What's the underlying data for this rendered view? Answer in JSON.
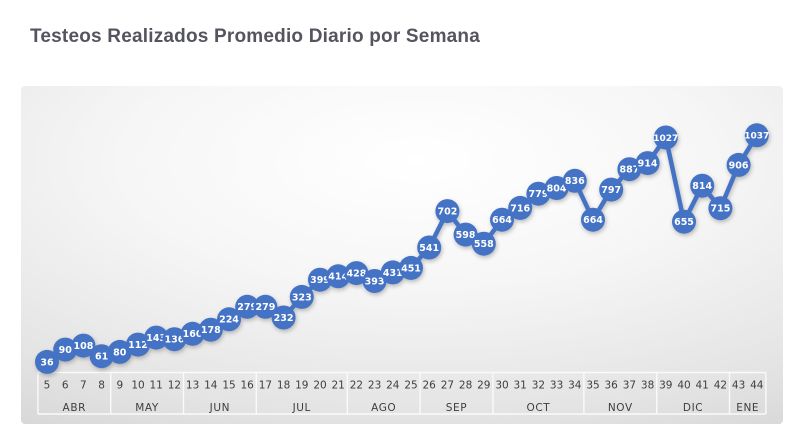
{
  "page": {
    "title": "Testeos Realizados Promedio Diario por Semana"
  },
  "colors": {
    "accent_blue": "#4472C4",
    "marker_label": "#FFFFFF",
    "title_text": "#54555E",
    "axis_text": "#3E3E3E",
    "axis_line": "#FAFAFA"
  },
  "chart_data": {
    "type": "line",
    "title": "Testeos Realizados Promedio Diario por Semana",
    "x": [
      5,
      6,
      7,
      8,
      9,
      10,
      11,
      12,
      13,
      14,
      15,
      16,
      17,
      18,
      19,
      20,
      21,
      22,
      23,
      24,
      25,
      26,
      27,
      28,
      29,
      30,
      31,
      32,
      33,
      34,
      35,
      36,
      37,
      38,
      39,
      40,
      41,
      42,
      43,
      44
    ],
    "values": [
      36,
      90,
      108,
      61,
      80,
      112,
      143,
      136,
      160,
      178,
      224,
      279,
      279,
      232,
      323,
      399,
      414,
      428,
      393,
      431,
      451,
      541,
      702,
      598,
      558,
      664,
      716,
      779,
      804,
      836,
      664,
      797,
      887,
      914,
      1027,
      655,
      814,
      715,
      906,
      1037
    ],
    "month_groups": [
      {
        "label": "ABR",
        "weeks": [
          5,
          6,
          7,
          8
        ]
      },
      {
        "label": "MAY",
        "weeks": [
          9,
          10,
          11,
          12
        ]
      },
      {
        "label": "JUN",
        "weeks": [
          13,
          14,
          15,
          16
        ]
      },
      {
        "label": "JUL",
        "weeks": [
          17,
          18,
          19,
          20,
          21
        ]
      },
      {
        "label": "AGO",
        "weeks": [
          22,
          23,
          24,
          25
        ]
      },
      {
        "label": "SEP",
        "weeks": [
          26,
          27,
          28,
          29
        ]
      },
      {
        "label": "OCT",
        "weeks": [
          30,
          31,
          32,
          33,
          34
        ]
      },
      {
        "label": "NOV",
        "weeks": [
          35,
          36,
          37,
          38
        ]
      },
      {
        "label": "DIC",
        "weeks": [
          39,
          40,
          41,
          42
        ]
      },
      {
        "label": "ENE",
        "weeks": [
          43,
          44
        ]
      }
    ],
    "ylim": [
      0,
      1100
    ],
    "grid": false,
    "legend": false,
    "data_labels": true,
    "marker": "circle"
  }
}
